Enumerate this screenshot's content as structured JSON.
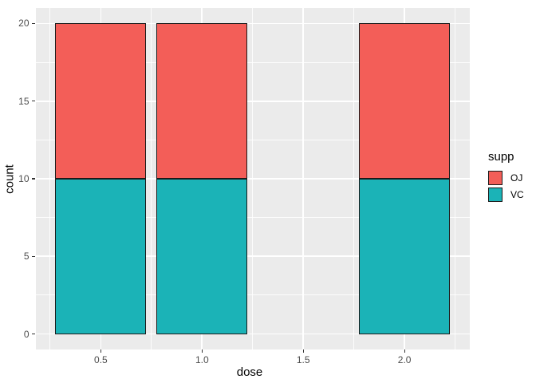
{
  "chart_data": {
    "type": "bar",
    "stacked": true,
    "title": "",
    "xlabel": "dose",
    "ylabel": "count",
    "x": [
      0.5,
      1.0,
      2.0
    ],
    "bar_width": 0.45,
    "series": [
      {
        "name": "VC",
        "color": "#1bb3b7",
        "values": [
          10,
          10,
          10
        ]
      },
      {
        "name": "OJ",
        "color": "#f35e58",
        "values": [
          10,
          10,
          10
        ]
      }
    ],
    "totals": [
      20,
      20,
      20
    ],
    "x_ticks": [
      0.5,
      1.0,
      1.5,
      2.0
    ],
    "x_tick_labels": [
      "0.5",
      "1.0",
      "1.5",
      "2.0"
    ],
    "x_minor_ticks": [
      0.25,
      0.75,
      1.25,
      1.75,
      2.25
    ],
    "y_ticks": [
      0,
      5,
      10,
      15,
      20
    ],
    "y_tick_labels": [
      "0",
      "5",
      "10",
      "15",
      "20"
    ],
    "y_minor_ticks": [
      2.5,
      7.5,
      12.5,
      17.5
    ],
    "xlim": [
      0.1775,
      2.3225
    ],
    "ylim": [
      -1,
      21
    ],
    "grid": true,
    "legend": {
      "position": "right",
      "title": "supp",
      "entries": [
        {
          "label": "OJ",
          "color": "#f35e58"
        },
        {
          "label": "VC",
          "color": "#1bb3b7"
        }
      ]
    },
    "colors": {
      "panel_background": "#ebebeb",
      "figure_background": "#ffffff",
      "grid_major": "#ffffff",
      "grid_minor": "#ffffff",
      "bar_outline": "#1a1a1a",
      "tick_mark": "#333333",
      "axis_text": "#4d4d4d",
      "axis_title": "#000000"
    }
  }
}
